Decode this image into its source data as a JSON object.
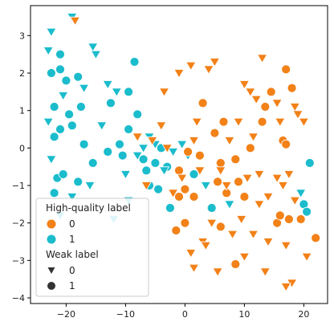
{
  "chart_data": {
    "type": "scatter",
    "title": "",
    "xlabel": "",
    "ylabel": "",
    "xlim": [
      -26,
      24
    ],
    "ylim": [
      -4.15,
      3.8
    ],
    "xticks": [
      -20,
      -10,
      0,
      10,
      20
    ],
    "xtick_labels": [
      "−20",
      "−10",
      "0",
      "10",
      "20"
    ],
    "yticks": [
      -4,
      -3,
      -2,
      -1,
      0,
      1,
      2,
      3
    ],
    "ytick_labels": [
      "−4",
      "−3",
      "−2",
      "−1",
      "0",
      "1",
      "2",
      "3"
    ],
    "grid": false,
    "colors": {
      "0": "#f28118",
      "1": "#1bbccc"
    },
    "legend": {
      "placement": "lower-left",
      "hue_title": "High-quality label",
      "hue_entries": [
        "0",
        "1"
      ],
      "style_title": "Weak label",
      "style_entries": [
        "0",
        "1"
      ],
      "style_markers": [
        "triangle-down",
        "circle"
      ]
    },
    "points": [
      {
        "x": -22.5,
        "y": 2.0,
        "hq": 1,
        "weak": 1
      },
      {
        "x": -21.0,
        "y": 2.1,
        "hq": 1,
        "weak": 1
      },
      {
        "x": -20.0,
        "y": 1.8,
        "hq": 1,
        "weak": 1
      },
      {
        "x": -19.5,
        "y": 0.9,
        "hq": 1,
        "weak": 1
      },
      {
        "x": -22.0,
        "y": 1.1,
        "hq": 1,
        "weak": 1
      },
      {
        "x": -21.0,
        "y": 0.5,
        "hq": 1,
        "weak": 1
      },
      {
        "x": -18.0,
        "y": 1.9,
        "hq": 1,
        "weak": 1
      },
      {
        "x": -17.5,
        "y": 1.1,
        "hq": 1,
        "weak": 1
      },
      {
        "x": -22.0,
        "y": 0.3,
        "hq": 1,
        "weak": 1
      },
      {
        "x": -19.0,
        "y": 0.6,
        "hq": 1,
        "weak": 1
      },
      {
        "x": -21.5,
        "y": -0.8,
        "hq": 1,
        "weak": 1
      },
      {
        "x": -20.5,
        "y": -0.7,
        "hq": 1,
        "weak": 1
      },
      {
        "x": -18.0,
        "y": -0.9,
        "hq": 1,
        "weak": 1
      },
      {
        "x": -17.0,
        "y": 0.1,
        "hq": 1,
        "weak": 1
      },
      {
        "x": -22.0,
        "y": -1.2,
        "hq": 1,
        "weak": 1
      },
      {
        "x": -21.0,
        "y": 2.5,
        "hq": 1,
        "weak": 1
      },
      {
        "x": -15.5,
        "y": -0.4,
        "hq": 1,
        "weak": 1
      },
      {
        "x": -13.0,
        "y": -0.1,
        "hq": 1,
        "weak": 1
      },
      {
        "x": -11.0,
        "y": 0.1,
        "hq": 1,
        "weak": 1
      },
      {
        "x": -12.5,
        "y": 1.2,
        "hq": 1,
        "weak": 1
      },
      {
        "x": -9.5,
        "y": 1.5,
        "hq": 1,
        "weak": 1
      },
      {
        "x": -8.0,
        "y": 0.9,
        "hq": 1,
        "weak": 1
      },
      {
        "x": -7.0,
        "y": -0.3,
        "hq": 1,
        "weak": 1
      },
      {
        "x": -6.5,
        "y": -0.6,
        "hq": 1,
        "weak": 1
      },
      {
        "x": -5.0,
        "y": -0.4,
        "hq": 1,
        "weak": 1
      },
      {
        "x": -4.0,
        "y": 0.0,
        "hq": 1,
        "weak": 1
      },
      {
        "x": -3.0,
        "y": -0.5,
        "hq": 1,
        "weak": 1
      },
      {
        "x": -8.5,
        "y": 2.3,
        "hq": 1,
        "weak": 1
      },
      {
        "x": -10.5,
        "y": -0.2,
        "hq": 1,
        "weak": 1
      },
      {
        "x": -6.0,
        "y": -1.0,
        "hq": 1,
        "weak": 1
      },
      {
        "x": -4.5,
        "y": -1.1,
        "hq": 1,
        "weak": 1
      },
      {
        "x": 1.5,
        "y": -0.7,
        "hq": 1,
        "weak": 1
      },
      {
        "x": -9.5,
        "y": 0.5,
        "hq": 1,
        "weak": 1
      },
      {
        "x": -2.5,
        "y": -1.6,
        "hq": 1,
        "weak": 1
      },
      {
        "x": 4.5,
        "y": -1.6,
        "hq": 1,
        "weak": 1
      },
      {
        "x": 21.0,
        "y": -0.4,
        "hq": 1,
        "weak": 1
      },
      {
        "x": 20.0,
        "y": -1.5,
        "hq": 1,
        "weak": 1
      },
      {
        "x": 20.5,
        "y": -1.7,
        "hq": 1,
        "weak": 1
      },
      {
        "x": -23.0,
        "y": 2.6,
        "hq": 1,
        "weak": 0
      },
      {
        "x": -22.5,
        "y": 3.1,
        "hq": 1,
        "weak": 0
      },
      {
        "x": -19.0,
        "y": 3.5,
        "hq": 1,
        "weak": 0
      },
      {
        "x": -20.5,
        "y": 1.4,
        "hq": 1,
        "weak": 0
      },
      {
        "x": -17.0,
        "y": 1.6,
        "hq": 1,
        "weak": 0
      },
      {
        "x": -15.5,
        "y": 2.7,
        "hq": 1,
        "weak": 0
      },
      {
        "x": -15.0,
        "y": 2.5,
        "hq": 1,
        "weak": 0
      },
      {
        "x": -13.0,
        "y": 1.7,
        "hq": 1,
        "weak": 0
      },
      {
        "x": -11.5,
        "y": 1.5,
        "hq": 1,
        "weak": 0
      },
      {
        "x": -23.0,
        "y": 0.7,
        "hq": 1,
        "weak": 0
      },
      {
        "x": -22.5,
        "y": -0.3,
        "hq": 1,
        "weak": 0
      },
      {
        "x": -21.0,
        "y": -1.8,
        "hq": 1,
        "weak": 0
      },
      {
        "x": -19.0,
        "y": -1.3,
        "hq": 1,
        "weak": 0
      },
      {
        "x": -16.0,
        "y": -1.0,
        "hq": 1,
        "weak": 0
      },
      {
        "x": -14.0,
        "y": 0.6,
        "hq": 1,
        "weak": 0
      },
      {
        "x": -10.0,
        "y": -0.7,
        "hq": 1,
        "weak": 0
      },
      {
        "x": -8.0,
        "y": -0.2,
        "hq": 1,
        "weak": 0
      },
      {
        "x": -7.0,
        "y": 0.0,
        "hq": 1,
        "weak": 0
      },
      {
        "x": -6.0,
        "y": 0.3,
        "hq": 1,
        "weak": 0
      },
      {
        "x": -5.0,
        "y": 0.1,
        "hq": 1,
        "weak": 0
      },
      {
        "x": -3.5,
        "y": -0.6,
        "hq": 1,
        "weak": 0
      },
      {
        "x": -2.0,
        "y": -0.1,
        "hq": 1,
        "weak": 0
      },
      {
        "x": -0.5,
        "y": 0.1,
        "hq": 1,
        "weak": 0
      },
      {
        "x": 0.5,
        "y": -0.2,
        "hq": 1,
        "weak": 0
      },
      {
        "x": -12.0,
        "y": -1.9,
        "hq": 1,
        "weak": 0
      },
      {
        "x": -9.5,
        "y": -1.4,
        "hq": 1,
        "weak": 0
      },
      {
        "x": 3.5,
        "y": -1.0,
        "hq": 1,
        "weak": 0
      },
      {
        "x": 7.5,
        "y": -1.5,
        "hq": 1,
        "weak": 0
      },
      {
        "x": 19.5,
        "y": -1.2,
        "hq": 1,
        "weak": 0
      },
      {
        "x": 0.5,
        "y": -0.1,
        "hq": 0,
        "weak": 1
      },
      {
        "x": -1.0,
        "y": -0.6,
        "hq": 0,
        "weak": 1
      },
      {
        "x": 0.0,
        "y": -1.1,
        "hq": 0,
        "weak": 1
      },
      {
        "x": -1.0,
        "y": -1.3,
        "hq": 0,
        "weak": 1
      },
      {
        "x": 1.5,
        "y": -1.3,
        "hq": 0,
        "weak": 1
      },
      {
        "x": -1.5,
        "y": -2.2,
        "hq": 0,
        "weak": 1
      },
      {
        "x": 0.0,
        "y": -2.0,
        "hq": 0,
        "weak": 1
      },
      {
        "x": 3.0,
        "y": 1.2,
        "hq": 0,
        "weak": 1
      },
      {
        "x": 5.0,
        "y": 0.4,
        "hq": 0,
        "weak": 1
      },
      {
        "x": 6.5,
        "y": 0.7,
        "hq": 0,
        "weak": 1
      },
      {
        "x": 6.0,
        "y": -0.4,
        "hq": 0,
        "weak": 1
      },
      {
        "x": 5.5,
        "y": -0.9,
        "hq": 0,
        "weak": 1
      },
      {
        "x": 8.5,
        "y": -0.3,
        "hq": 0,
        "weak": 1
      },
      {
        "x": 9.0,
        "y": -0.9,
        "hq": 0,
        "weak": 1
      },
      {
        "x": 7.0,
        "y": -1.2,
        "hq": 0,
        "weak": 1
      },
      {
        "x": 10.0,
        "y": -1.3,
        "hq": 0,
        "weak": 1
      },
      {
        "x": 6.0,
        "y": -2.1,
        "hq": 0,
        "weak": 1
      },
      {
        "x": 8.5,
        "y": -3.1,
        "hq": 0,
        "weak": 1
      },
      {
        "x": 13.5,
        "y": 1.1,
        "hq": 0,
        "weak": 1
      },
      {
        "x": 14.5,
        "y": 1.5,
        "hq": 0,
        "weak": 1
      },
      {
        "x": 13.0,
        "y": 0.7,
        "hq": 0,
        "weak": 1
      },
      {
        "x": 16.5,
        "y": 0.2,
        "hq": 0,
        "weak": 1
      },
      {
        "x": 17.0,
        "y": 0.1,
        "hq": 0,
        "weak": 1
      },
      {
        "x": 17.0,
        "y": 2.1,
        "hq": 0,
        "weak": 1
      },
      {
        "x": 18.0,
        "y": 1.6,
        "hq": 0,
        "weak": 1
      },
      {
        "x": 17.5,
        "y": -1.9,
        "hq": 0,
        "weak": 1
      },
      {
        "x": 15.5,
        "y": -2.0,
        "hq": 0,
        "weak": 1
      },
      {
        "x": 16.0,
        "y": -1.8,
        "hq": 0,
        "weak": 1
      },
      {
        "x": 19.5,
        "y": -1.9,
        "hq": 0,
        "weak": 1
      },
      {
        "x": 22.0,
        "y": -2.4,
        "hq": 0,
        "weak": 1
      },
      {
        "x": 2.5,
        "y": -0.2,
        "hq": 0,
        "weak": 1
      },
      {
        "x": 11.0,
        "y": 0.0,
        "hq": 0,
        "weak": 1
      },
      {
        "x": -3.5,
        "y": 1.5,
        "hq": 0,
        "weak": 0
      },
      {
        "x": 1.0,
        "y": 2.2,
        "hq": 0,
        "weak": 0
      },
      {
        "x": 2.0,
        "y": 0.7,
        "hq": 0,
        "weak": 0
      },
      {
        "x": 2.5,
        "y": -0.6,
        "hq": 0,
        "weak": 0
      },
      {
        "x": 4.0,
        "y": 2.1,
        "hq": 0,
        "weak": 0
      },
      {
        "x": 5.0,
        "y": 2.3,
        "hq": 0,
        "weak": 0
      },
      {
        "x": 4.5,
        "y": -2.0,
        "hq": 0,
        "weak": 0
      },
      {
        "x": 3.0,
        "y": -2.5,
        "hq": 0,
        "weak": 0
      },
      {
        "x": 1.0,
        "y": -2.8,
        "hq": 0,
        "weak": 0
      },
      {
        "x": 1.5,
        "y": -3.2,
        "hq": 0,
        "weak": 0
      },
      {
        "x": 7.0,
        "y": -1.0,
        "hq": 0,
        "weak": 0
      },
      {
        "x": 8.0,
        "y": -2.3,
        "hq": 0,
        "weak": 0
      },
      {
        "x": 10.0,
        "y": -2.9,
        "hq": 0,
        "weak": 0
      },
      {
        "x": 9.0,
        "y": 0.7,
        "hq": 0,
        "weak": 0
      },
      {
        "x": 11.5,
        "y": 0.3,
        "hq": 0,
        "weak": 0
      },
      {
        "x": 10.5,
        "y": -0.8,
        "hq": 0,
        "weak": 0
      },
      {
        "x": 12.5,
        "y": -1.5,
        "hq": 0,
        "weak": 0
      },
      {
        "x": 11.5,
        "y": -2.3,
        "hq": 0,
        "weak": 0
      },
      {
        "x": 10.0,
        "y": 1.7,
        "hq": 0,
        "weak": 0
      },
      {
        "x": 11.0,
        "y": 1.5,
        "hq": 0,
        "weak": 0
      },
      {
        "x": 12.0,
        "y": 1.3,
        "hq": 0,
        "weak": 0
      },
      {
        "x": 13.0,
        "y": 2.4,
        "hq": 0,
        "weak": 0
      },
      {
        "x": 15.5,
        "y": 1.2,
        "hq": 0,
        "weak": 0
      },
      {
        "x": 16.0,
        "y": 0.7,
        "hq": 0,
        "weak": 0
      },
      {
        "x": 18.5,
        "y": 1.1,
        "hq": 0,
        "weak": 0
      },
      {
        "x": 19.0,
        "y": 0.9,
        "hq": 0,
        "weak": 0
      },
      {
        "x": 20.0,
        "y": 0.7,
        "hq": 0,
        "weak": 0
      },
      {
        "x": 15.5,
        "y": -0.8,
        "hq": 0,
        "weak": 0
      },
      {
        "x": 16.5,
        "y": -1.0,
        "hq": 0,
        "weak": 0
      },
      {
        "x": 17.5,
        "y": -0.7,
        "hq": 0,
        "weak": 0
      },
      {
        "x": 18.5,
        "y": -1.4,
        "hq": 0,
        "weak": 0
      },
      {
        "x": 14.0,
        "y": -2.5,
        "hq": 0,
        "weak": 0
      },
      {
        "x": 17.0,
        "y": -2.6,
        "hq": 0,
        "weak": 0
      },
      {
        "x": 18.0,
        "y": -3.6,
        "hq": 0,
        "weak": 0
      },
      {
        "x": 17.0,
        "y": -3.7,
        "hq": 0,
        "weak": 0
      },
      {
        "x": 20.5,
        "y": -2.9,
        "hq": 0,
        "weak": 0
      },
      {
        "x": 5.5,
        "y": -3.3,
        "hq": 0,
        "weak": 0
      },
      {
        "x": 13.5,
        "y": -3.3,
        "hq": 0,
        "weak": 0
      },
      {
        "x": 6.0,
        "y": -0.6,
        "hq": 0,
        "weak": 0
      },
      {
        "x": -5.5,
        "y": 0.2,
        "hq": 0,
        "weak": 0
      },
      {
        "x": -3.0,
        "y": 0.0,
        "hq": 0,
        "weak": 0
      },
      {
        "x": -2.0,
        "y": -1.2,
        "hq": 0,
        "weak": 0
      },
      {
        "x": -0.5,
        "y": -0.8,
        "hq": 0,
        "weak": 0
      },
      {
        "x": -1.0,
        "y": 2.0,
        "hq": 0,
        "weak": 0
      },
      {
        "x": 3.5,
        "y": -2.6,
        "hq": 0,
        "weak": 0
      },
      {
        "x": -6.5,
        "y": -1.0,
        "hq": 0,
        "weak": 0
      },
      {
        "x": -18.5,
        "y": 3.4,
        "hq": 0,
        "weak": 0
      },
      {
        "x": -8.0,
        "y": 0.3,
        "hq": 0,
        "weak": 0
      },
      {
        "x": -4.0,
        "y": 0.6,
        "hq": 0,
        "weak": 0
      },
      {
        "x": 1.5,
        "y": 0.2,
        "hq": 0,
        "weak": 0
      },
      {
        "x": 7.5,
        "y": 0.2,
        "hq": 0,
        "weak": 0
      },
      {
        "x": 12.5,
        "y": -0.7,
        "hq": 0,
        "weak": 0
      },
      {
        "x": 14.0,
        "y": -1.3,
        "hq": 0,
        "weak": 0
      },
      {
        "x": 9.5,
        "y": -1.9,
        "hq": 0,
        "weak": 0
      }
    ]
  }
}
